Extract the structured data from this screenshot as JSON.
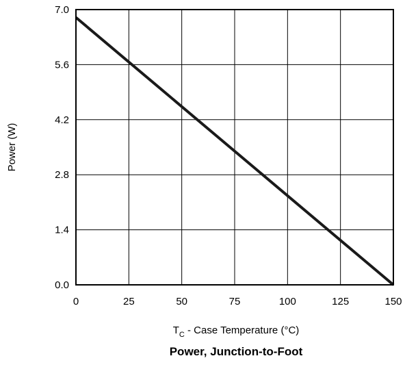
{
  "chart_data": {
    "type": "line",
    "title": "Power, Junction-to-Foot",
    "xlabel": {
      "main": "T",
      "sub": "C",
      "rest": " - Case Temperature (°C)"
    },
    "ylabel": "Power (W)",
    "xlim": [
      0,
      150
    ],
    "ylim": [
      0,
      7.0
    ],
    "x_ticks": [
      "0",
      "25",
      "50",
      "75",
      "100",
      "125",
      "150"
    ],
    "y_ticks": [
      "0.0",
      "1.4",
      "2.8",
      "4.2",
      "5.6",
      "7.0"
    ],
    "grid": true,
    "series": [
      {
        "x": [
          0,
          150
        ],
        "y": [
          6.8,
          0.0
        ]
      }
    ],
    "line_color": "#1a1a1a"
  }
}
